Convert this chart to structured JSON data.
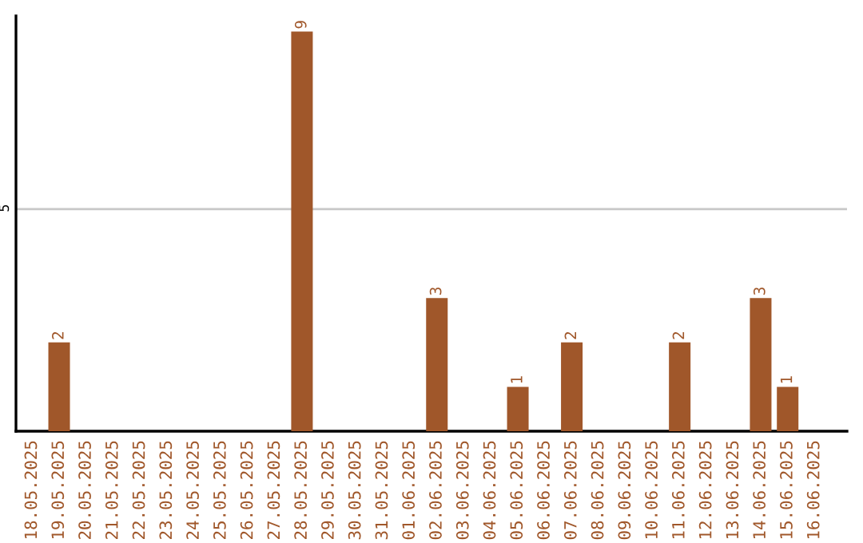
{
  "chart_data": {
    "type": "bar",
    "categories": [
      "18.05.2025",
      "19.05.2025",
      "20.05.2025",
      "21.05.2025",
      "22.05.2025",
      "23.05.2025",
      "24.05.2025",
      "25.05.2025",
      "26.05.2025",
      "27.05.2025",
      "28.05.2025",
      "29.05.2025",
      "30.05.2025",
      "31.05.2025",
      "01.06.2025",
      "02.06.2025",
      "03.06.2025",
      "04.06.2025",
      "05.06.2025",
      "06.06.2025",
      "07.06.2025",
      "08.06.2025",
      "09.06.2025",
      "10.06.2025",
      "11.06.2025",
      "12.06.2025",
      "13.06.2025",
      "14.06.2025",
      "15.06.2025",
      "16.06.2025"
    ],
    "values": [
      null,
      2,
      null,
      null,
      null,
      null,
      null,
      null,
      null,
      null,
      9,
      null,
      null,
      null,
      null,
      3,
      null,
      null,
      1,
      null,
      2,
      null,
      null,
      null,
      2,
      null,
      null,
      3,
      1,
      null
    ],
    "color": "#a0572a",
    "ylim": [
      0,
      9.35
    ],
    "yticks": [
      5
    ],
    "grid": "y",
    "data_labels": true
  }
}
